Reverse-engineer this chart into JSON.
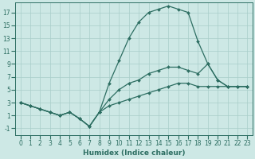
{
  "background_color": "#cde8e5",
  "grid_color": "#a8cec9",
  "line_color": "#2d6e62",
  "marker_style": "D",
  "marker_size": 2.0,
  "line_width": 0.9,
  "xlabel": "Humidex (Indice chaleur)",
  "xlabel_fontsize": 6.5,
  "tick_fontsize": 5.5,
  "xlim": [
    -0.5,
    23.5
  ],
  "ylim": [
    -2.0,
    18.5
  ],
  "xticks": [
    0,
    1,
    2,
    3,
    4,
    5,
    6,
    7,
    8,
    9,
    10,
    11,
    12,
    13,
    14,
    15,
    16,
    17,
    18,
    19,
    20,
    21,
    22,
    23
  ],
  "yticks": [
    -1,
    1,
    3,
    5,
    7,
    9,
    11,
    13,
    15,
    17
  ],
  "series": [
    {
      "x": [
        0,
        1,
        2,
        3,
        4,
        5,
        6,
        7,
        8,
        9,
        10,
        11,
        12,
        13,
        14,
        15,
        16,
        17,
        18,
        19,
        20,
        21,
        22,
        23
      ],
      "y": [
        3,
        2.5,
        2,
        1.5,
        1,
        1.5,
        0.5,
        -0.7,
        1.5,
        6,
        9.5,
        13,
        15.5,
        17,
        17.5,
        18,
        17.5,
        17,
        12.5,
        9,
        6.5,
        5.5,
        5.5,
        5.5
      ]
    },
    {
      "x": [
        0,
        1,
        2,
        3,
        4,
        5,
        6,
        7,
        8,
        9,
        10,
        11,
        12,
        13,
        14,
        15,
        16,
        17,
        18,
        19,
        20,
        21,
        22,
        23
      ],
      "y": [
        3,
        2.5,
        2,
        1.5,
        1,
        1.5,
        0.5,
        -0.7,
        1.5,
        3.5,
        5,
        6,
        6.5,
        7.5,
        8,
        8.5,
        8.5,
        8,
        7.5,
        9,
        6.5,
        5.5,
        5.5,
        5.5
      ]
    },
    {
      "x": [
        0,
        1,
        2,
        3,
        4,
        5,
        6,
        7,
        8,
        9,
        10,
        11,
        12,
        13,
        14,
        15,
        16,
        17,
        18,
        19,
        20,
        21,
        22,
        23
      ],
      "y": [
        3,
        2.5,
        2,
        1.5,
        1,
        1.5,
        0.5,
        -0.7,
        1.5,
        2.5,
        3.0,
        3.5,
        4.0,
        4.5,
        5.0,
        5.5,
        6.0,
        6.0,
        5.5,
        5.5,
        5.5,
        5.5,
        5.5,
        5.5
      ]
    }
  ]
}
